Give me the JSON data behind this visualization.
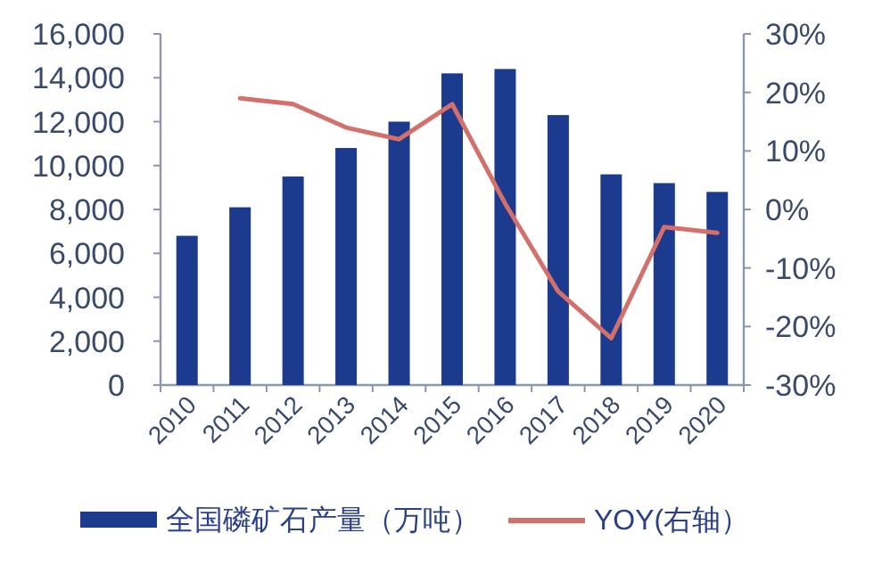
{
  "chart_data": {
    "type": "bar",
    "categories": [
      "2010",
      "2011",
      "2012",
      "2013",
      "2014",
      "2015",
      "2016",
      "2017",
      "2018",
      "2019",
      "2020"
    ],
    "series": [
      {
        "name": "全国磷矿石产量（万吨）",
        "color": "#1c3a8e",
        "values": [
          6800,
          8100,
          9500,
          10800,
          12000,
          14200,
          14400,
          12300,
          9600,
          9200,
          8800
        ]
      },
      {
        "name": "YOY(右轴）",
        "type": "line",
        "axis": "y2",
        "color": "#d4706b",
        "values": [
          null,
          19,
          18,
          14,
          12,
          18,
          1,
          -14,
          -22,
          -3,
          -4
        ]
      }
    ],
    "ylim": [
      0,
      16000
    ],
    "yticks": [
      {
        "value": 0,
        "label": "0"
      },
      {
        "value": 2000,
        "label": "2,000"
      },
      {
        "value": 4000,
        "label": "4,000"
      },
      {
        "value": 6000,
        "label": "6,000"
      },
      {
        "value": 8000,
        "label": "8,000"
      },
      {
        "value": 10000,
        "label": "10,000"
      },
      {
        "value": 12000,
        "label": "12,000"
      },
      {
        "value": 14000,
        "label": "14,000"
      },
      {
        "value": 16000,
        "label": "16,000"
      }
    ],
    "y2lim": [
      -30,
      30
    ],
    "y2ticks": [
      {
        "value": -30,
        "label": "-30%"
      },
      {
        "value": -20,
        "label": "-20%"
      },
      {
        "value": -10,
        "label": "-10%"
      },
      {
        "value": 0,
        "label": "0%"
      },
      {
        "value": 10,
        "label": "10%"
      },
      {
        "value": 20,
        "label": "20%"
      },
      {
        "value": 30,
        "label": "30%"
      }
    ],
    "legend": "bottom",
    "grid": false,
    "marker": "none",
    "line_style": "solid"
  }
}
